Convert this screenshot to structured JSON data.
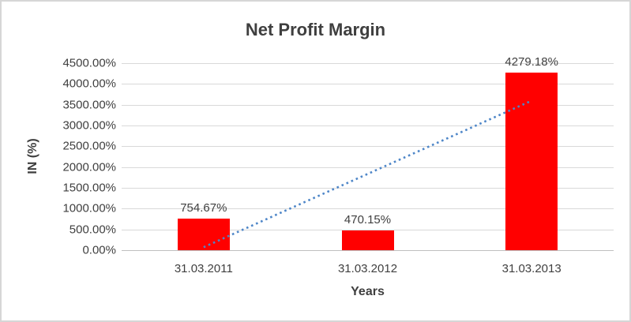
{
  "window": {
    "background": "#FFFFFF",
    "border_color": "#D6D6D6"
  },
  "chart_data": {
    "type": "bar",
    "title": "Net Profit Margin",
    "xlabel": "Years",
    "ylabel": "IN (%)",
    "categories": [
      "31.03.2011",
      "31.03.2012",
      "31.03.2013"
    ],
    "values": [
      754.67,
      470.15,
      4279.18
    ],
    "data_labels": [
      "754.67%",
      "470.15%",
      "4279.18%"
    ],
    "y_ticks": [
      "4500.00%",
      "4000.00%",
      "3500.00%",
      "3000.00%",
      "2500.00%",
      "2000.00%",
      "1500.00%",
      "1000.00%",
      "500.00%",
      "0.00%"
    ],
    "ylim": [
      0,
      4500
    ],
    "y_step": 500,
    "grid": true,
    "legend_position": "none",
    "bar_color": "#FF0000",
    "gridline_color": "#D9D9D9",
    "axis_line_color": "#BFBFBF",
    "text_color": "#3F3F3F",
    "trendline": {
      "shape": "linear",
      "line_style": "dotted",
      "color": "#4E86C8",
      "start_category_index": 0,
      "end_category_index": 2,
      "start_value": 72,
      "end_value": 3597
    }
  }
}
